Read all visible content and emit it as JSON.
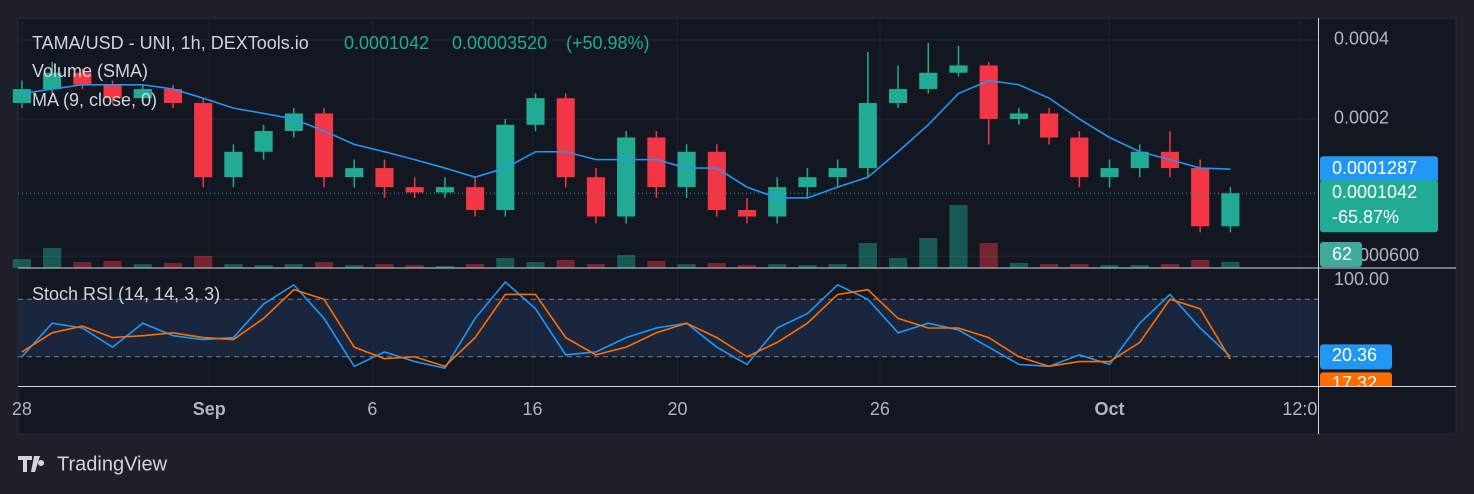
{
  "chart_data": {
    "type": "candlestick",
    "title": "TAMA/USD - UNI, 1h, DEXTools.io",
    "legend_change": "0.00003520",
    "legend_change_pct": "(+50.98%)",
    "close_change_tag": "-65.87%",
    "volume_label": "Volume (SMA)",
    "ma_label": "MA (9, close, 0)",
    "log": true,
    "grid": true,
    "up_color": "#22ab94",
    "down_color": "#f23645",
    "xlim": [
      -0.13,
      42.9
    ],
    "xticks": [
      {
        "value": 0,
        "label": "28"
      },
      {
        "value": 6.2,
        "label": "Sep"
      },
      {
        "value": 11.6,
        "label": "6"
      },
      {
        "value": 16.9,
        "label": "16"
      },
      {
        "value": 21.7,
        "label": "20"
      },
      {
        "value": 28.4,
        "label": "26"
      },
      {
        "value": 36,
        "label": "Oct"
      },
      {
        "value": 42.3,
        "label": "12:0"
      }
    ],
    "ylim": [
      5.41e-05,
      0.000485
    ],
    "yticks": [
      0.0004,
      0.0002,
      {
        "value": 6e-05,
        "label": "0.0000600"
      }
    ],
    "open": [
      0.00023,
      0.00026,
      0.0003,
      0.00027,
      0.00024,
      0.00026,
      0.00023,
      0.00012,
      0.00015,
      0.00018,
      0.00021,
      0.00012,
      0.00013,
      0.00011,
      0.000105,
      0.00011,
      9e-05,
      0.00019,
      0.00024,
      0.00012,
      8.5e-05,
      0.00017,
      0.00011,
      0.00015,
      9e-05,
      8.5e-05,
      0.00011,
      0.00012,
      0.00013,
      0.00023,
      0.00026,
      0.0003,
      0.00032,
      0.0002,
      0.00021,
      0.00017,
      0.00012,
      0.00013,
      0.00015,
      0.00013,
      7.8e-05
    ],
    "high": [
      0.00028,
      0.00033,
      0.00031,
      0.00028,
      0.00027,
      0.00027,
      0.00024,
      0.00016,
      0.00019,
      0.00022,
      0.00022,
      0.00014,
      0.00014,
      0.00012,
      0.00012,
      0.00012,
      0.0002,
      0.00025,
      0.00025,
      0.00013,
      0.00018,
      0.00018,
      0.00016,
      0.00016,
      0.0001,
      0.00012,
      0.00013,
      0.00014,
      0.00036,
      0.00032,
      0.00039,
      0.00038,
      0.00033,
      0.00022,
      0.00022,
      0.00018,
      0.00014,
      0.00016,
      0.00018,
      0.00014,
      0.00011
    ],
    "low": [
      0.00022,
      0.00025,
      0.00026,
      0.00023,
      0.00023,
      0.00022,
      0.00011,
      0.00011,
      0.00014,
      0.00017,
      0.00011,
      0.00011,
      0.0001,
      0.0001,
      0.0001,
      8.5e-05,
      8.5e-05,
      0.00018,
      0.00011,
      8e-05,
      8e-05,
      0.0001,
      0.0001,
      8.5e-05,
      8e-05,
      8e-05,
      0.0001,
      0.00011,
      0.00012,
      0.00022,
      0.00025,
      0.00029,
      0.00016,
      0.00019,
      0.00016,
      0.00011,
      0.00011,
      0.00012,
      0.00012,
      7.4e-05,
      7.4e-05
    ],
    "close": [
      0.00026,
      0.0003,
      0.00027,
      0.00024,
      0.00026,
      0.00023,
      0.00012,
      0.00015,
      0.00018,
      0.00021,
      0.00012,
      0.00013,
      0.00011,
      0.000105,
      0.00011,
      9e-05,
      0.00019,
      0.00024,
      0.00012,
      8.5e-05,
      0.00017,
      0.00011,
      0.00015,
      9e-05,
      8.5e-05,
      0.00011,
      0.00012,
      0.00013,
      0.00023,
      0.00026,
      0.0003,
      0.00032,
      0.0002,
      0.00021,
      0.00017,
      0.00012,
      0.00013,
      0.00015,
      0.00013,
      7.8e-05,
      0.0001042
    ],
    "ma": {
      "color": "#2196f3",
      "values": [
        0.00025,
        0.00026,
        0.00027,
        0.00027,
        0.00027,
        0.00026,
        0.00024,
        0.00022,
        0.00021,
        0.0002,
        0.00018,
        0.00016,
        0.00015,
        0.00014,
        0.00013,
        0.00012,
        0.00013,
        0.00015,
        0.00015,
        0.00014,
        0.00014,
        0.00014,
        0.00013,
        0.00013,
        0.00011,
        0.0001,
        0.0001,
        0.00011,
        0.00012,
        0.00015,
        0.00019,
        0.00025,
        0.00028,
        0.00027,
        0.00024,
        0.0002,
        0.00017,
        0.00015,
        0.00014,
        0.00013,
        0.0001287
      ]
    },
    "volume": {
      "vlim": [
        0,
        1300
      ],
      "values": [
        90,
        200,
        60,
        70,
        40,
        50,
        120,
        40,
        30,
        40,
        60,
        30,
        40,
        30,
        20,
        40,
        100,
        60,
        80,
        40,
        130,
        70,
        40,
        50,
        30,
        40,
        30,
        40,
        250,
        100,
        300,
        630,
        250,
        50,
        40,
        40,
        30,
        30,
        40,
        80,
        62
      ]
    },
    "stoch": {
      "label": "Stoch RSI (14, 14, 3, 3)",
      "ylim": [
        -10.5,
        112.6
      ],
      "yticks": [
        {
          "value": 100,
          "label": "100.00"
        }
      ],
      "bands": [
        20,
        80
      ],
      "series": [
        {
          "color": "#2196f3",
          "values": [
            20,
            55,
            50,
            30,
            55,
            42,
            38,
            40,
            75,
            95,
            60,
            10,
            25,
            15,
            8,
            60,
            98,
            70,
            22,
            25,
            40,
            50,
            55,
            30,
            12,
            50,
            65,
            95,
            80,
            45,
            55,
            48,
            30,
            12,
            10,
            22,
            12,
            55,
            85,
            50,
            20.36
          ]
        },
        {
          "color": "#ff6d00",
          "values": [
            25,
            45,
            52,
            40,
            42,
            45,
            40,
            38,
            60,
            90,
            80,
            30,
            18,
            20,
            10,
            40,
            85,
            85,
            40,
            22,
            30,
            45,
            55,
            40,
            20,
            35,
            55,
            85,
            90,
            60,
            50,
            50,
            40,
            20,
            10,
            15,
            15,
            35,
            80,
            70,
            17.32
          ]
        }
      ]
    }
  },
  "footer": {
    "brand": "TradingView"
  }
}
